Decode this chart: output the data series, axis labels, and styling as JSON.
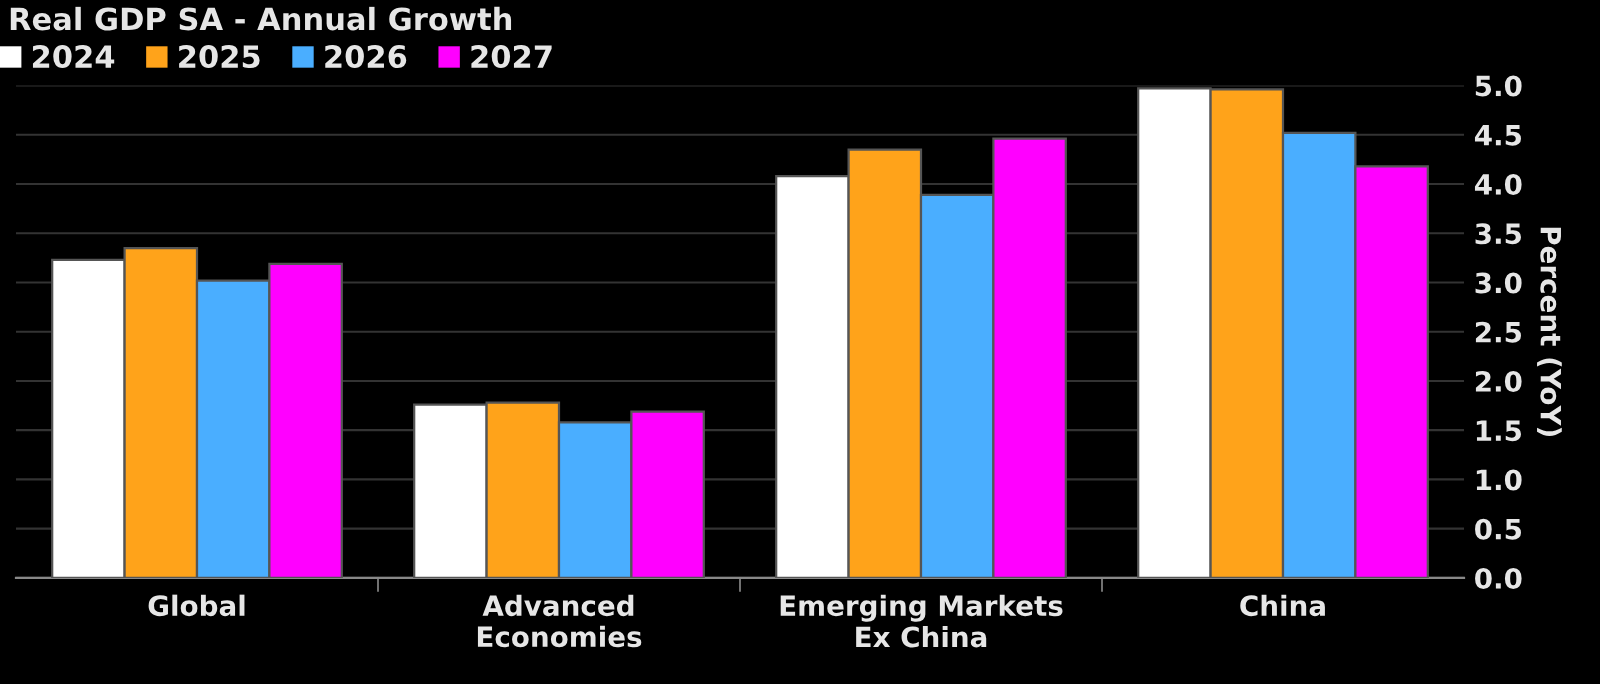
{
  "chart_data": {
    "type": "bar",
    "title": "Real GDP SA - Annual Growth",
    "ylabel": "Percent (YoY)",
    "categories": [
      "Global",
      "Advanced\nEconomies",
      "Emerging Markets\nEx China",
      "China"
    ],
    "series": [
      {
        "name": "2024",
        "color": "#ffffff",
        "values": [
          3.23,
          1.76,
          4.08,
          4.97
        ]
      },
      {
        "name": "2025",
        "color": "#ffa31a",
        "values": [
          3.35,
          1.78,
          4.35,
          4.96
        ]
      },
      {
        "name": "2026",
        "color": "#4aaeff",
        "values": [
          3.02,
          1.58,
          3.89,
          4.52
        ]
      },
      {
        "name": "2027",
        "color": "#ff00ff",
        "values": [
          3.19,
          1.69,
          4.46,
          4.18
        ]
      }
    ],
    "ylim": [
      0,
      5.0
    ],
    "yticks": [
      {
        "value": 0,
        "label": "0.0"
      },
      {
        "value": 0.5,
        "label": "0.5"
      },
      {
        "value": 1.0,
        "label": "1.0"
      },
      {
        "value": 1.5,
        "label": "1.5"
      },
      {
        "value": 2.0,
        "label": "2.0"
      },
      {
        "value": 2.5,
        "label": "2.5"
      },
      {
        "value": 3.0,
        "label": "3.0"
      },
      {
        "value": 3.5,
        "label": "3.5"
      },
      {
        "value": 4.0,
        "label": "4.0"
      },
      {
        "value": 4.5,
        "label": "4.5"
      },
      {
        "value": 5.0,
        "label": "5.0"
      }
    ],
    "grid": "y",
    "legend": "top left"
  }
}
